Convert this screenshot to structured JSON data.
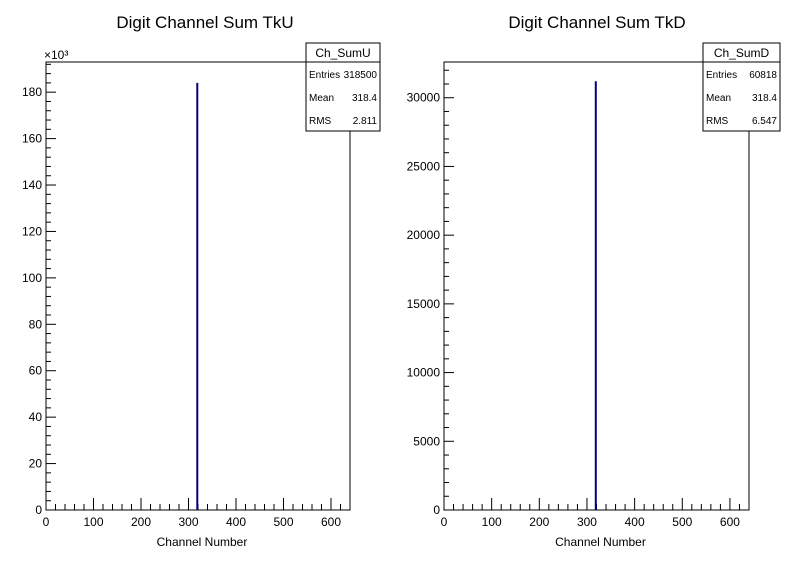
{
  "chart_data": [
    {
      "type": "bar",
      "title": "Digit Channel Sum TkU",
      "xlabel": "Channel Number",
      "ylabel": "",
      "xlim": [
        0,
        640
      ],
      "ylim": [
        0,
        193000
      ],
      "x_ticks": [
        0,
        100,
        200,
        300,
        400,
        500,
        600
      ],
      "y_ticks": [
        0,
        20000,
        40000,
        60000,
        80000,
        100000,
        120000,
        140000,
        160000,
        180000
      ],
      "y_tick_labels": [
        "0",
        "20",
        "40",
        "60",
        "80",
        "100",
        "120",
        "140",
        "160",
        "180"
      ],
      "exponent_label": "×10³",
      "series": [
        {
          "x": [
            318.5
          ],
          "values": [
            184000
          ]
        }
      ],
      "line_color": "#000080",
      "stats": {
        "name": "Ch_SumU",
        "rows": [
          {
            "label": "Entries",
            "value": "318500"
          },
          {
            "label": "Mean",
            "value": "318.4"
          },
          {
            "label": "RMS",
            "value": "2.811"
          }
        ]
      },
      "legend_position": "top-right",
      "grid": false
    },
    {
      "type": "bar",
      "title": "Digit Channel Sum TkD",
      "xlabel": "Channel Number",
      "ylabel": "",
      "xlim": [
        0,
        640
      ],
      "ylim": [
        0,
        32600
      ],
      "x_ticks": [
        0,
        100,
        200,
        300,
        400,
        500,
        600
      ],
      "y_ticks": [
        0,
        5000,
        10000,
        15000,
        20000,
        25000,
        30000
      ],
      "y_tick_labels": [
        "0",
        "5000",
        "10000",
        "15000",
        "20000",
        "25000",
        "30000"
      ],
      "series": [
        {
          "x": [
            318.5
          ],
          "values": [
            31200
          ]
        }
      ],
      "line_color": "#000080",
      "stats": {
        "name": "Ch_SumD",
        "rows": [
          {
            "label": "Entries",
            "value": "60818"
          },
          {
            "label": "Mean",
            "value": "318.4"
          },
          {
            "label": "RMS",
            "value": "6.547"
          }
        ]
      },
      "legend_position": "top-right",
      "grid": false
    }
  ]
}
